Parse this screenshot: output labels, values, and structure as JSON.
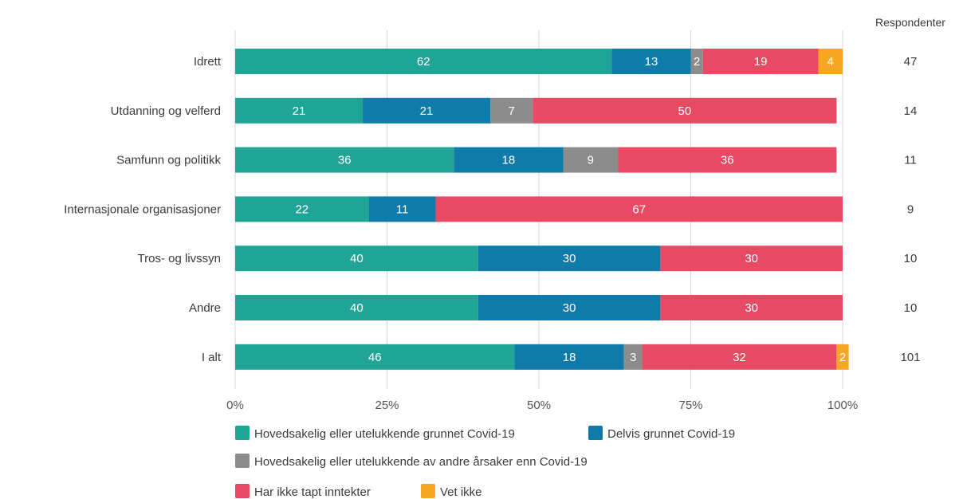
{
  "chart_data": {
    "type": "bar",
    "orientation": "horizontal",
    "stacked": true,
    "xlim": [
      0,
      100
    ],
    "x_ticks": [
      "0%",
      "25%",
      "50%",
      "75%",
      "100%"
    ],
    "gridlines": true,
    "legend_position": "bottom",
    "categories": [
      "Idrett",
      "Utdanning og velferd",
      "Samfunn og politikk",
      "Internasjonale organisasjoner",
      "Tros- og livssyn",
      "Andre",
      "I alt"
    ],
    "series": [
      {
        "name": "Hovedsakelig eller utelukkende grunnet Covid-19",
        "color": "#20a496",
        "values": [
          62,
          21,
          36,
          22,
          40,
          40,
          46
        ]
      },
      {
        "name": "Delvis grunnet Covid-19",
        "color": "#0f7bab",
        "values": [
          13,
          21,
          18,
          11,
          30,
          30,
          18
        ]
      },
      {
        "name": "Hovedsakelig eller utelukkende av andre årsaker enn Covid-19",
        "color": "#8c8c8c",
        "values": [
          2,
          7,
          9,
          0,
          0,
          0,
          3
        ]
      },
      {
        "name": "Har ikke tapt inntekter",
        "color": "#e84a64",
        "values": [
          19,
          50,
          36,
          67,
          30,
          30,
          32
        ]
      },
      {
        "name": "Vet ikke",
        "color": "#f5a623",
        "values": [
          4,
          0,
          0,
          0,
          0,
          0,
          2
        ]
      }
    ],
    "respondents_header": "Respondenter",
    "respondents": [
      "47",
      "14",
      "11",
      "9",
      "10",
      "10",
      "101"
    ]
  }
}
